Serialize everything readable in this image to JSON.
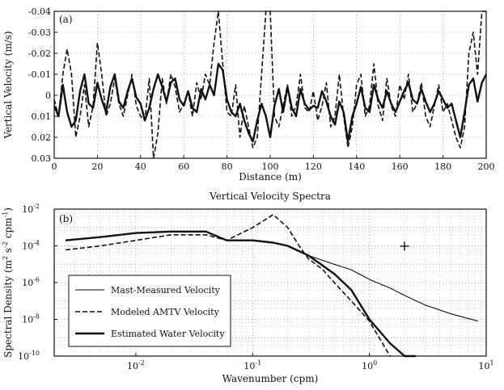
{
  "chart_data": [
    {
      "type": "line",
      "panel_label": "(a)",
      "title": "",
      "xlabel": "Distance (m)",
      "ylabel": "Vertical Velocity (m/s)",
      "xlim": [
        0,
        200
      ],
      "ylim": [
        0.03,
        -0.04
      ],
      "y_axis_inverted": true,
      "grid": true,
      "xticks": [
        0,
        20,
        40,
        60,
        80,
        100,
        120,
        140,
        160,
        180,
        200
      ],
      "xtick_labels": [
        "0",
        "20",
        "40",
        "60",
        "80",
        "100",
        "120",
        "140",
        "160",
        "180",
        "200"
      ],
      "yticks": [
        -0.04,
        -0.03,
        -0.02,
        -0.01,
        0,
        0.01,
        0.02,
        0.03
      ],
      "ytick_labels": [
        "-0.04",
        "-0.03",
        "-0.02",
        "-0.01",
        "0",
        "0.01",
        "0.02",
        "0.03"
      ],
      "series": [
        {
          "style": "solid-thick",
          "color": "#111111",
          "x": [
            0,
            2,
            4,
            6,
            8,
            10,
            12,
            14,
            16,
            18,
            20,
            22,
            24,
            26,
            28,
            30,
            32,
            34,
            36,
            38,
            40,
            42,
            44,
            46,
            48,
            50,
            52,
            54,
            56,
            58,
            60,
            62,
            64,
            66,
            68,
            70,
            72,
            74,
            76,
            78,
            80,
            82,
            84,
            86,
            88,
            90,
            92,
            94,
            96,
            98,
            100,
            102,
            104,
            106,
            108,
            110,
            112,
            114,
            116,
            118,
            120,
            122,
            124,
            126,
            128,
            130,
            132,
            134,
            136,
            138,
            140,
            142,
            144,
            146,
            148,
            150,
            152,
            154,
            156,
            158,
            160,
            162,
            164,
            166,
            168,
            170,
            172,
            174,
            176,
            178,
            180,
            182,
            184,
            186,
            188,
            190,
            192,
            194,
            196,
            198,
            200
          ],
          "y": [
            0.005,
            0.01,
            -0.005,
            0.008,
            0.015,
            0.012,
            -0.002,
            -0.01,
            0.004,
            0.006,
            -0.006,
            0.002,
            0.008,
            -0.004,
            -0.01,
            0.003,
            0.006,
            -0.002,
            -0.008,
            0.001,
            0.004,
            0.012,
            0.006,
            -0.003,
            -0.01,
            -0.004,
            0.003,
            -0.006,
            -0.008,
            0.002,
            0.005,
            -0.002,
            0.006,
            0.008,
            -0.003,
            0.002,
            -0.005,
            0.0,
            -0.015,
            -0.012,
            0.002,
            0.008,
            0.01,
            0.004,
            0.012,
            0.018,
            0.022,
            0.012,
            0.004,
            0.01,
            0.02,
            0.005,
            -0.003,
            0.008,
            -0.004,
            0.006,
            0.01,
            -0.003,
            0.004,
            0.007,
            0.005,
            0.006,
            -0.002,
            0.003,
            0.01,
            0.014,
            0.003,
            0.008,
            0.022,
            0.01,
            0.004,
            -0.004,
            0.006,
            0.008,
            -0.005,
            0.002,
            0.006,
            -0.002,
            0.004,
            0.008,
            0.003,
            -0.002,
            -0.006,
            0.002,
            0.004,
            -0.003,
            0.003,
            0.008,
            0.004,
            -0.002,
            0.002,
            0.006,
            0.004,
            0.012,
            0.02,
            0.008,
            -0.005,
            -0.008,
            0.003,
            -0.006,
            -0.01
          ]
        },
        {
          "style": "dashed",
          "color": "#111111",
          "x": [
            0,
            2,
            4,
            6,
            8,
            10,
            12,
            14,
            16,
            18,
            20,
            22,
            24,
            26,
            28,
            30,
            32,
            34,
            36,
            38,
            40,
            42,
            44,
            46,
            48,
            50,
            52,
            54,
            56,
            58,
            60,
            62,
            64,
            66,
            68,
            70,
            72,
            74,
            76,
            78,
            80,
            82,
            84,
            86,
            88,
            90,
            92,
            94,
            96,
            98,
            100,
            102,
            104,
            106,
            108,
            110,
            112,
            114,
            116,
            118,
            120,
            122,
            124,
            126,
            128,
            130,
            132,
            134,
            136,
            138,
            140,
            142,
            144,
            146,
            148,
            150,
            152,
            154,
            156,
            158,
            160,
            162,
            164,
            166,
            168,
            170,
            172,
            174,
            176,
            178,
            180,
            182,
            184,
            186,
            188,
            190,
            192,
            194,
            196,
            198,
            200
          ],
          "y": [
            0.002,
            0.01,
            -0.01,
            -0.022,
            -0.01,
            0.02,
            0.01,
            -0.005,
            0.015,
            0.005,
            -0.025,
            -0.01,
            0.01,
            0.004,
            -0.008,
            0.004,
            0.01,
            0.0,
            -0.01,
            0.005,
            0.01,
            0.012,
            -0.008,
            0.03,
            0.018,
            -0.008,
            0.004,
            -0.01,
            -0.004,
            0.008,
            0.004,
            -0.002,
            0.01,
            -0.006,
            0.002,
            -0.01,
            -0.005,
            -0.025,
            -0.04,
            -0.015,
            0.008,
            0.01,
            -0.005,
            0.02,
            0.005,
            0.015,
            0.025,
            0.02,
            -0.01,
            -0.04,
            -0.04,
            0.01,
            0.015,
            0.005,
            -0.005,
            0.01,
            0.005,
            -0.01,
            0.006,
            0.008,
            -0.002,
            0.012,
            0.005,
            -0.006,
            0.015,
            0.01,
            -0.01,
            0.01,
            0.025,
            0.015,
            -0.005,
            -0.01,
            0.01,
            0.005,
            -0.015,
            0.005,
            0.012,
            -0.008,
            0.005,
            0.01,
            -0.005,
            0.002,
            -0.01,
            0.008,
            0.004,
            -0.006,
            0.01,
            0.015,
            0.005,
            -0.005,
            0.008,
            0.004,
            0.012,
            0.02,
            0.025,
            0.015,
            -0.02,
            -0.03,
            -0.01,
            -0.04,
            -0.04
          ]
        }
      ]
    },
    {
      "type": "line",
      "panel_label": "(b)",
      "title": "Vertical Velocity Spectra",
      "xlabel": "Wavenumber (cpm)",
      "ylabel_main": "Spectral Density (m",
      "ylabel_sup1": "2",
      "ylabel_mid": " s",
      "ylabel_sup2": "-2",
      "ylabel_mid2": " cpm",
      "ylabel_sup3": "-1",
      "ylabel_end": ")",
      "x_scale": "log",
      "y_scale": "log",
      "xlim": [
        0.002,
        10
      ],
      "ylim": [
        1e-10,
        0.01
      ],
      "grid": true,
      "xticks": [
        0.01,
        0.1,
        1,
        10
      ],
      "xtick_base": [
        "10",
        "10",
        "10",
        "10"
      ],
      "xtick_exp": [
        "-2",
        "-1",
        "0",
        "1"
      ],
      "yticks": [
        1e-10,
        1e-08,
        1e-06,
        0.0001,
        0.01
      ],
      "ytick_base": [
        "10",
        "10",
        "10",
        "10",
        "10"
      ],
      "ytick_exp": [
        "-10",
        "-8",
        "-6",
        "-4",
        "-2"
      ],
      "legend_position": "lower-left",
      "series": [
        {
          "name": "Mast-Measured Velocity",
          "style": "solid-thin",
          "color": "#111111",
          "x": [
            0.0025,
            0.005,
            0.01,
            0.02,
            0.04,
            0.06,
            0.1,
            0.15,
            0.2,
            0.3,
            0.5,
            0.7,
            1.0,
            1.5,
            2.0,
            3.0,
            5.0,
            8.5
          ],
          "y": [
            0.0002,
            0.0003,
            0.0005,
            0.0006,
            0.0006,
            0.0002,
            0.0002,
            0.00015,
            0.0001,
            3e-05,
            1e-05,
            5e-06,
            1.5e-06,
            5e-07,
            2e-07,
            6e-08,
            2e-08,
            8e-09
          ]
        },
        {
          "name": "Modeled AMTV Velocity",
          "style": "dashed",
          "color": "#111111",
          "x": [
            0.0025,
            0.005,
            0.01,
            0.02,
            0.04,
            0.06,
            0.1,
            0.15,
            0.2,
            0.25,
            0.3,
            0.4,
            0.5,
            0.7,
            1.0,
            1.5
          ],
          "y": [
            6e-05,
            0.0001,
            0.0002,
            0.0004,
            0.0004,
            0.0002,
            0.001,
            0.005,
            0.001,
            0.0001,
            2e-05,
            5e-06,
            1e-06,
            1e-07,
            8e-09,
            1e-10
          ]
        },
        {
          "name": "Estimated Water Velocity",
          "style": "solid-thick",
          "color": "#111111",
          "x": [
            0.0025,
            0.005,
            0.01,
            0.02,
            0.04,
            0.06,
            0.1,
            0.15,
            0.2,
            0.3,
            0.5,
            0.7,
            1.0,
            1.5,
            2.0,
            2.5
          ],
          "y": [
            0.0002,
            0.0003,
            0.0005,
            0.0006,
            0.0006,
            0.0002,
            0.0002,
            0.00015,
            0.0001,
            3e-05,
            3e-06,
            4e-07,
            1e-08,
            5e-10,
            1e-10,
            1e-10
          ]
        }
      ],
      "marker": {
        "symbol": "+",
        "x": 2.0,
        "y": 0.0001
      }
    }
  ]
}
